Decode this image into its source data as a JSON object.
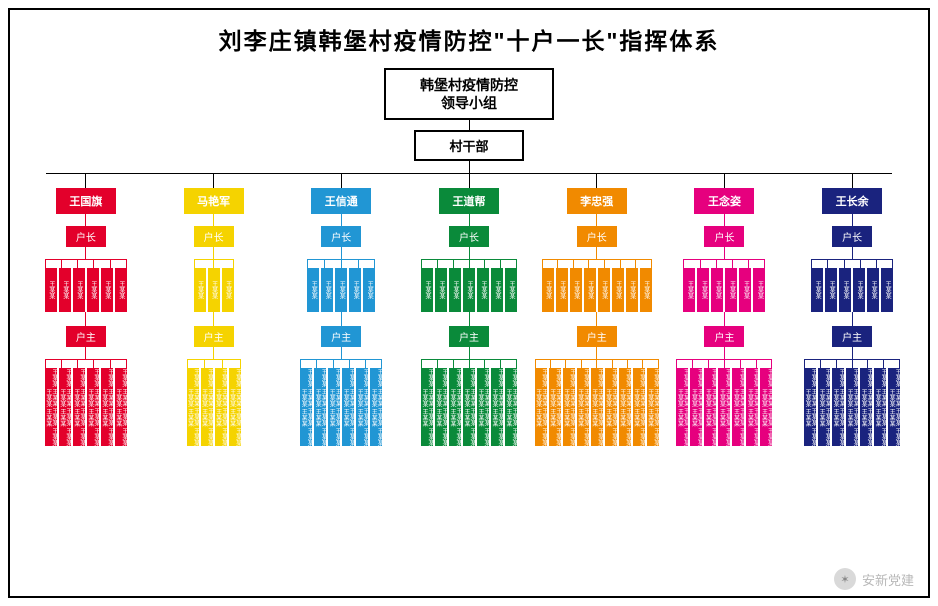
{
  "title": "刘李庄镇韩堡村疫情防控\"十户一长\"指挥体系",
  "top_box_line1": "韩堡村疫情防控",
  "top_box_line2": "领导小组",
  "sub_box": "村干部",
  "role_huzhang": "户长",
  "role_huzhu": "户主",
  "watermark": "安新党建",
  "branches": [
    {
      "leader": "王国旗",
      "color": "#e3002b",
      "n1": 6,
      "n2": 6
    },
    {
      "leader": "马艳军",
      "color": "#f5d300",
      "n1": 3,
      "n2": 4
    },
    {
      "leader": "王信通",
      "color": "#2196d4",
      "n1": 5,
      "n2": 6
    },
    {
      "leader": "王道帮",
      "color": "#0a8a3a",
      "n1": 7,
      "n2": 7
    },
    {
      "leader": "李忠强",
      "color": "#f18a00",
      "n1": 8,
      "n2": 9
    },
    {
      "leader": "王念姿",
      "color": "#e6007e",
      "n1": 6,
      "n2": 7
    },
    {
      "leader": "王长余",
      "color": "#1a237e",
      "n1": 6,
      "n2": 7
    }
  ],
  "sample_names_vert": [
    "王某某",
    "王某某",
    "王某某",
    "王某某",
    "王某某",
    "王某某",
    "王某某",
    "王某某",
    "王某某"
  ],
  "sample_long": "王某某 王某某 王某某 王某某 王某某 王某某"
}
